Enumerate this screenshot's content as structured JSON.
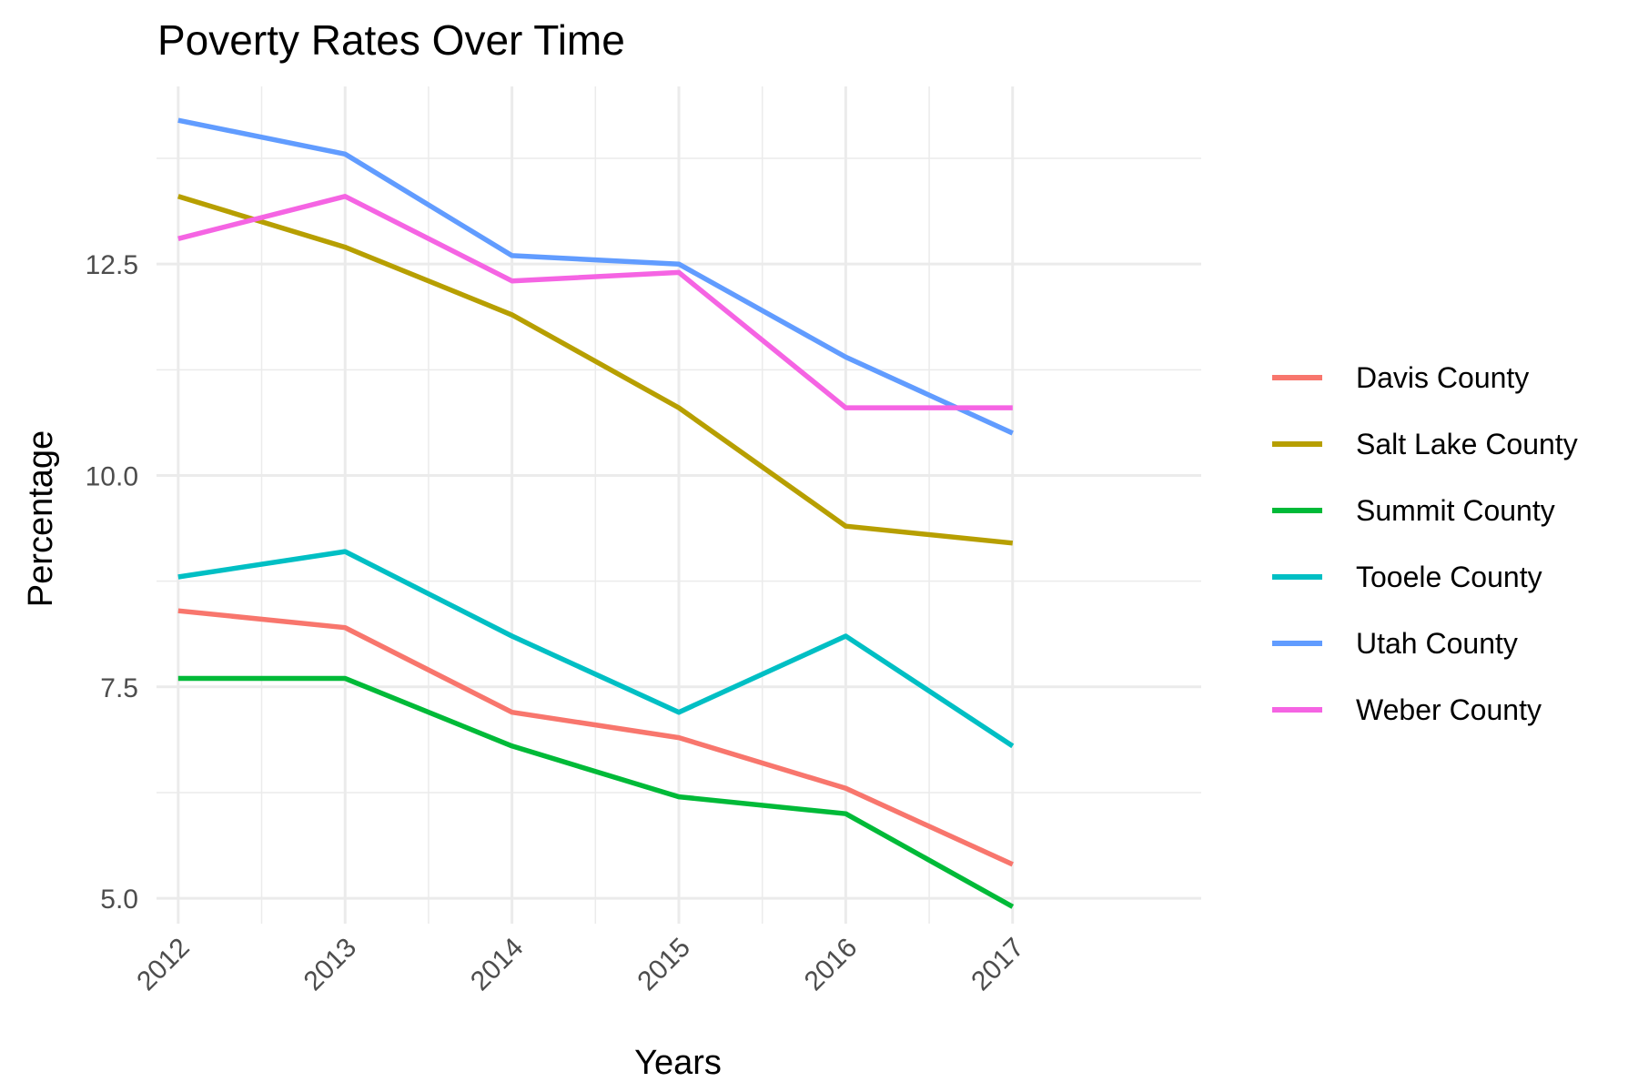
{
  "chart_data": {
    "type": "line",
    "title": "Poverty Rates Over Time",
    "xlabel": "Years",
    "ylabel": "Percentage",
    "x": [
      2012,
      2013,
      2014,
      2015,
      2016,
      2017
    ],
    "x_ticks": [
      "2012",
      "2013",
      "2014",
      "2015",
      "2016",
      "2017"
    ],
    "y_ticks": [
      "5.0",
      "7.5",
      "10.0",
      "12.5"
    ],
    "y_tick_values": [
      5.0,
      7.5,
      10.0,
      12.5
    ],
    "xlim": [
      2011.87,
      2018.13
    ],
    "ylim": [
      4.7,
      14.6
    ],
    "grid": true,
    "legend_position": "right",
    "series": [
      {
        "name": "Davis County",
        "color": "#F8766D",
        "values": [
          8.4,
          8.2,
          7.2,
          6.9,
          6.3,
          5.4
        ]
      },
      {
        "name": "Salt Lake County",
        "color": "#B79F00",
        "values": [
          13.3,
          12.7,
          11.9,
          10.8,
          9.4,
          9.2
        ]
      },
      {
        "name": "Summit County",
        "color": "#00BA38",
        "values": [
          7.6,
          7.6,
          6.8,
          6.2,
          6.0,
          4.9
        ]
      },
      {
        "name": "Tooele County",
        "color": "#00BFC4",
        "values": [
          8.8,
          9.1,
          8.1,
          7.2,
          8.1,
          6.8
        ]
      },
      {
        "name": "Utah County",
        "color": "#619CFF",
        "values": [
          14.2,
          13.8,
          12.6,
          12.5,
          11.4,
          10.5
        ]
      },
      {
        "name": "Weber County",
        "color": "#F564E3",
        "values": [
          12.8,
          13.3,
          12.3,
          12.4,
          10.8,
          10.8
        ]
      }
    ]
  }
}
